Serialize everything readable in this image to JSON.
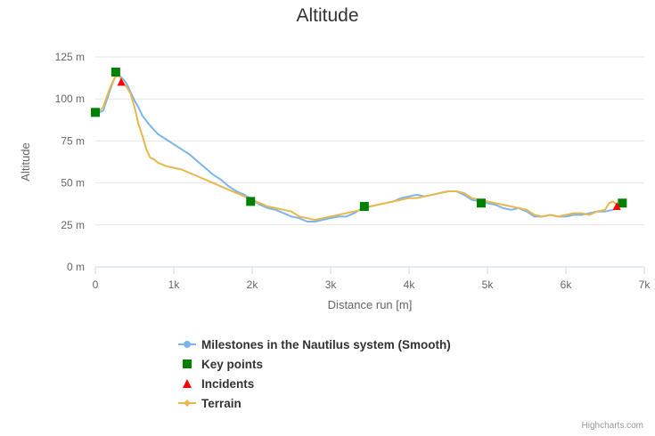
{
  "chart_data": {
    "type": "line",
    "title": "Altitude",
    "xlabel": "Distance run [m]",
    "ylabel": "Altitude",
    "x_ticks": [
      "0",
      "1k",
      "2k",
      "3k",
      "4k",
      "5k",
      "6k",
      "7k"
    ],
    "y_ticks": [
      "0 m",
      "25 m",
      "50 m",
      "75 m",
      "100 m",
      "125 m"
    ],
    "xlim": [
      0,
      7000
    ],
    "ylim": [
      0,
      125
    ],
    "grid": "horizontal",
    "legend_position": "bottom",
    "series": [
      {
        "name": "Milestones in the Nautilus system (Smooth)",
        "type": "line",
        "color": "#7cb5ec",
        "x": [
          0,
          50,
          100,
          150,
          200,
          250,
          300,
          350,
          400,
          450,
          500,
          550,
          600,
          700,
          800,
          900,
          1000,
          1100,
          1200,
          1300,
          1400,
          1500,
          1600,
          1700,
          1800,
          1900,
          2000,
          2100,
          2200,
          2300,
          2400,
          2500,
          2600,
          2700,
          2800,
          2900,
          3000,
          3100,
          3200,
          3300,
          3400,
          3500,
          3600,
          3700,
          3800,
          3900,
          4000,
          4100,
          4200,
          4300,
          4400,
          4500,
          4600,
          4700,
          4800,
          4900,
          5000,
          5100,
          5200,
          5300,
          5400,
          5500,
          5600,
          5700,
          5800,
          5900,
          6000,
          6100,
          6200,
          6300,
          6400,
          6500,
          6600,
          6650,
          6700
        ],
        "values": [
          91,
          92,
          93,
          100,
          107,
          113,
          114,
          112,
          109,
          104,
          99,
          95,
          90,
          84,
          79,
          76,
          73,
          70,
          67,
          63,
          59,
          55,
          52,
          48,
          45,
          43,
          40,
          37,
          35,
          34,
          32,
          30,
          29,
          27,
          27,
          28,
          29,
          30,
          30,
          32,
          35,
          36,
          37,
          38,
          39,
          41,
          42,
          43,
          42,
          43,
          44,
          45,
          45,
          43,
          40,
          39,
          38,
          37,
          35,
          34,
          35,
          33,
          30,
          30,
          31,
          30,
          30,
          31,
          31,
          32,
          33,
          33,
          34,
          35,
          38
        ]
      },
      {
        "name": "Key points",
        "type": "scatter",
        "marker": "square",
        "color": "#008000",
        "x": [
          0,
          260,
          1980,
          3430,
          4920,
          6720
        ],
        "values": [
          92,
          116,
          39,
          36,
          38,
          38
        ]
      },
      {
        "name": "Incidents",
        "type": "scatter",
        "marker": "triangle",
        "color": "#ff0000",
        "x": [
          330,
          6650
        ],
        "values": [
          110,
          36
        ]
      },
      {
        "name": "Terrain",
        "type": "area-line",
        "color": "#e8b84e",
        "x": [
          0,
          50,
          100,
          150,
          200,
          250,
          300,
          350,
          400,
          450,
          500,
          550,
          600,
          650,
          700,
          750,
          800,
          900,
          1000,
          1100,
          1200,
          1300,
          1400,
          1500,
          1600,
          1700,
          1800,
          1900,
          2000,
          2100,
          2200,
          2300,
          2400,
          2500,
          2600,
          2700,
          2800,
          2900,
          3000,
          3100,
          3200,
          3300,
          3400,
          3500,
          3600,
          3700,
          3800,
          3900,
          4000,
          4100,
          4200,
          4300,
          4400,
          4500,
          4600,
          4700,
          4800,
          4900,
          5000,
          5100,
          5200,
          5300,
          5400,
          5500,
          5600,
          5700,
          5800,
          5900,
          6000,
          6100,
          6200,
          6300,
          6400,
          6500,
          6550,
          6600,
          6650,
          6700
        ],
        "values": [
          92,
          93,
          95,
          102,
          108,
          113,
          114,
          110,
          107,
          103,
          95,
          85,
          78,
          70,
          65,
          64,
          62,
          60,
          59,
          58,
          56,
          54,
          52,
          50,
          48,
          46,
          44,
          42,
          40,
          38,
          36,
          35,
          34,
          33,
          30,
          29,
          28,
          29,
          30,
          31,
          32,
          33,
          34,
          36,
          37,
          38,
          39,
          40,
          41,
          41,
          42,
          43,
          44,
          45,
          45,
          44,
          41,
          40,
          39,
          38,
          37,
          36,
          35,
          34,
          31,
          30,
          31,
          30,
          31,
          32,
          32,
          31,
          33,
          34,
          38,
          39,
          37,
          37
        ]
      }
    ]
  },
  "legend": {
    "items": [
      {
        "label": "Milestones in the Nautilus system (Smooth)",
        "symbol": "line-circle",
        "color": "#7cb5ec"
      },
      {
        "label": "Key points",
        "symbol": "square",
        "color": "#008000"
      },
      {
        "label": "Incidents",
        "symbol": "triangle",
        "color": "#ff0000"
      },
      {
        "label": "Terrain",
        "symbol": "line-diamond",
        "color": "#e8b84e"
      }
    ]
  },
  "credits": "Highcharts.com"
}
